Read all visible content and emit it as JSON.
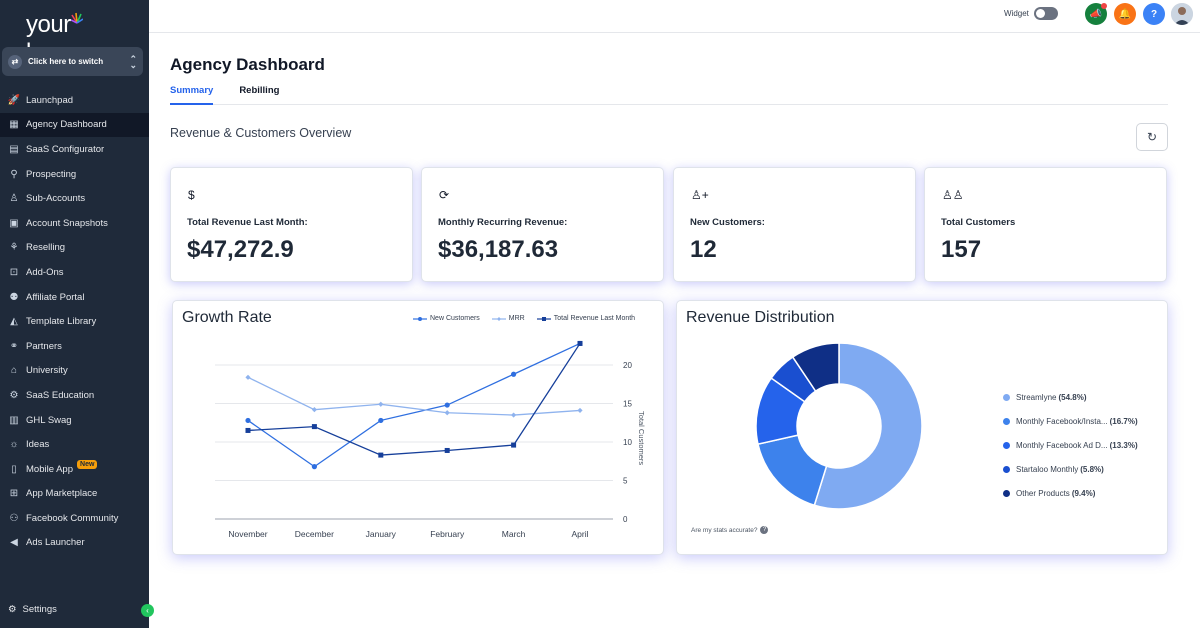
{
  "brand": {
    "logo_left": "your",
    "logo_right": "logo"
  },
  "switcher": {
    "label": "Click here to switch"
  },
  "sidebar": {
    "items": [
      {
        "label": "Launchpad",
        "icon": "rocket-icon",
        "glyph": "🚀"
      },
      {
        "label": "Agency Dashboard",
        "icon": "dashboard-icon",
        "glyph": "▦"
      },
      {
        "label": "SaaS Configurator",
        "icon": "bar-chart-icon",
        "glyph": "▤"
      },
      {
        "label": "Prospecting",
        "icon": "user-search-icon",
        "glyph": "⚲"
      },
      {
        "label": "Sub-Accounts",
        "icon": "user-icon",
        "glyph": "♙"
      },
      {
        "label": "Account Snapshots",
        "icon": "snapshot-icon",
        "glyph": "▣"
      },
      {
        "label": "Reselling",
        "icon": "reselling-icon",
        "glyph": "⚘"
      },
      {
        "label": "Add-Ons",
        "icon": "bag-icon",
        "glyph": "⊡"
      },
      {
        "label": "Affiliate Portal",
        "icon": "group-icon",
        "glyph": "⚉"
      },
      {
        "label": "Template Library",
        "icon": "shapes-icon",
        "glyph": "◭"
      },
      {
        "label": "Partners",
        "icon": "handshake-icon",
        "glyph": "⚭"
      },
      {
        "label": "University",
        "icon": "graduation-cap-icon",
        "glyph": "⌂"
      },
      {
        "label": "SaaS Education",
        "icon": "education-icon",
        "glyph": "⚙"
      },
      {
        "label": "GHL Swag",
        "icon": "store-icon",
        "glyph": "▥"
      },
      {
        "label": "Ideas",
        "icon": "lightbulb-icon",
        "glyph": "☼"
      },
      {
        "label": "Mobile App",
        "icon": "phone-icon",
        "glyph": "▯",
        "badge": "New"
      },
      {
        "label": "App Marketplace",
        "icon": "grid-icon",
        "glyph": "⊞"
      },
      {
        "label": "Facebook Community",
        "icon": "community-icon",
        "glyph": "⚇"
      },
      {
        "label": "Ads Launcher",
        "icon": "megaphone-icon",
        "glyph": "◀"
      }
    ],
    "active_index": 1,
    "settings_label": "Settings"
  },
  "topbar": {
    "widget_label": "Widget",
    "widget_on": false
  },
  "page": {
    "title": "Agency Dashboard",
    "tabs": [
      "Summary",
      "Rebilling"
    ],
    "active_tab": 0,
    "section_title": "Revenue & Customers Overview"
  },
  "kpis": [
    {
      "icon": "dollar-icon",
      "glyph": "$",
      "label": "Total Revenue Last Month:",
      "value": "$47,272.9"
    },
    {
      "icon": "recurring-icon",
      "glyph": "⟳",
      "label": "Monthly Recurring Revenue:",
      "value": "$36,187.63"
    },
    {
      "icon": "user-plus-icon",
      "glyph": "♙+",
      "label": "New Customers:",
      "value": "12"
    },
    {
      "icon": "users-icon",
      "glyph": "♙♙",
      "label": "Total Customers",
      "value": "157"
    }
  ],
  "growth": {
    "title": "Growth Rate",
    "legend": [
      "New Customers",
      "MRR",
      "Total Revenue Last Month"
    ],
    "y_axis_title": "Total Customers"
  },
  "distribution": {
    "title": "Revenue Distribution",
    "stats_link": "Are my stats accurate?",
    "items": [
      {
        "name": "Streamlyne",
        "pct_label": "(54.8%)"
      },
      {
        "name": "Monthly Facebook/Insta...",
        "pct_label": "(16.7%)"
      },
      {
        "name": "Monthly Facebook Ad D...",
        "pct_label": "(13.3%)"
      },
      {
        "name": "Startaloo Monthly",
        "pct_label": "(5.8%)"
      },
      {
        "name": "Other Products",
        "pct_label": "(9.4%)"
      }
    ]
  },
  "colors": {
    "sidebar_bg": "#1f2a3a",
    "accent": "#2563eb",
    "series": [
      "#2f6fe0",
      "#8fb3ee",
      "#163f9a"
    ],
    "donut": [
      "#7faaf2",
      "#3d82ec",
      "#2563eb",
      "#1a4fd0",
      "#0f2f86"
    ]
  },
  "chart_data": [
    {
      "type": "line",
      "title": "Growth Rate",
      "x": [
        "November",
        "December",
        "January",
        "February",
        "March",
        "April"
      ],
      "ylabel": "Total Customers",
      "ylim": [
        0,
        20
      ],
      "yticks": [
        0,
        5,
        10,
        15,
        20
      ],
      "grid": true,
      "legend_position": "top-right",
      "series": [
        {
          "name": "New Customers",
          "values": [
            12.8,
            6.8,
            12.8,
            14.8,
            18.8,
            22.8
          ]
        },
        {
          "name": "MRR",
          "values": [
            18.4,
            14.2,
            14.9,
            13.8,
            13.5,
            14.1
          ]
        },
        {
          "name": "Total Revenue Last Month",
          "values": [
            11.5,
            12.0,
            8.3,
            8.9,
            9.6,
            22.8
          ]
        }
      ]
    },
    {
      "type": "pie",
      "title": "Revenue Distribution",
      "categories": [
        "Streamlyne",
        "Monthly Facebook/Insta...",
        "Monthly Facebook Ad D...",
        "Startaloo Monthly",
        "Other Products"
      ],
      "values": [
        54.8,
        16.7,
        13.3,
        5.8,
        9.4
      ],
      "legend_position": "right"
    }
  ]
}
